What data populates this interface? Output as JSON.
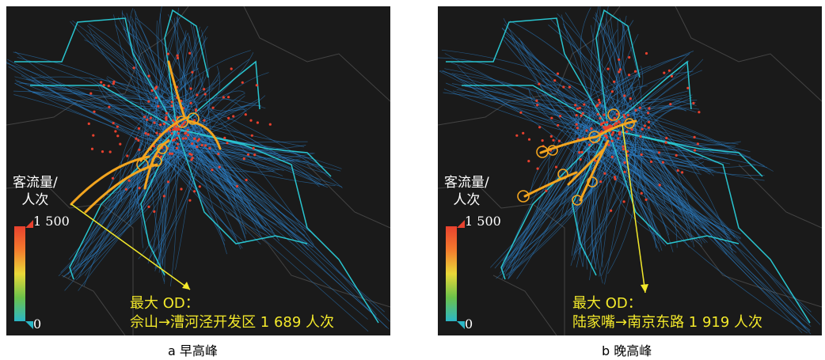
{
  "panels": [
    {
      "id": "a",
      "caption": "a 早高峰",
      "legend": {
        "title_line1": "客流量/",
        "title_line2": "人次",
        "max_label": "1 500",
        "min_label": "0"
      },
      "max_od": {
        "label": "最大 OD：",
        "detail": "佘山→漕河泾开发区 1 689 人次"
      }
    },
    {
      "id": "b",
      "caption": "b 晚高峰",
      "legend": {
        "title_line1": "客流量/",
        "title_line2": "人次",
        "max_label": "1 500",
        "min_label": "0"
      },
      "max_od": {
        "label": "最大 OD：",
        "detail": "陆家嘴→南京东路 1 919 人次"
      }
    }
  ],
  "colors": {
    "background": "#1a1a1a",
    "flow_line": "#2e86d4",
    "rail_line": "#29c4cf",
    "station": "#e8412e",
    "hot_flow": "#f3a51f",
    "annotation": "#f3e92b"
  }
}
